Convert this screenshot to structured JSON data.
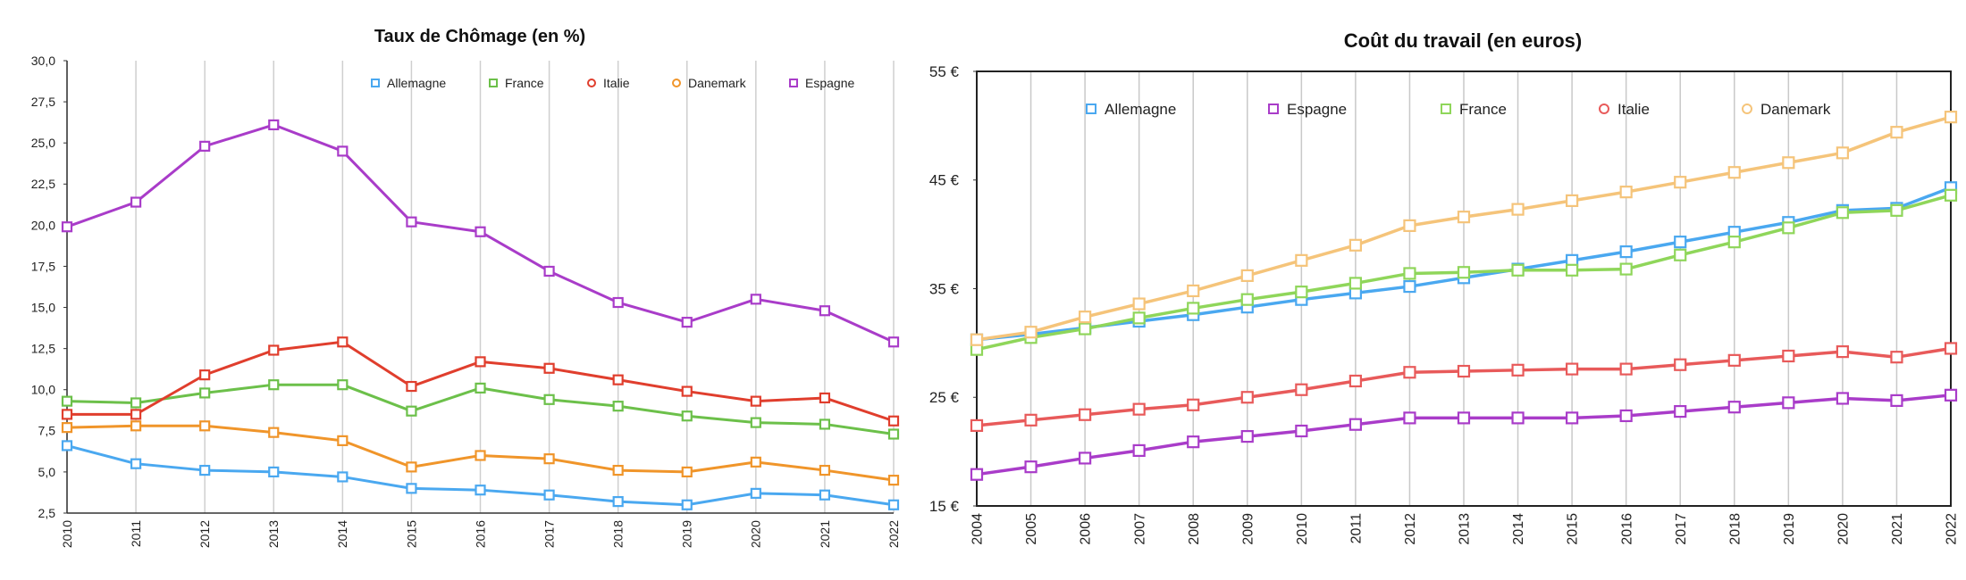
{
  "chart_data": [
    {
      "type": "line",
      "title": "Taux de Chômage (en %)",
      "xlabel": "",
      "ylabel": "",
      "x": [
        "2010",
        "2011",
        "2012",
        "2013",
        "2014",
        "2015",
        "2016",
        "2017",
        "2018",
        "2019",
        "2020",
        "2021",
        "2022"
      ],
      "ylim": [
        2.5,
        30
      ],
      "yticks": [
        "2,5",
        "5,0",
        "7,5",
        "10,0",
        "12,5",
        "15,0",
        "17,5",
        "20,0",
        "22,5",
        "25,0",
        "27,5",
        "30,0"
      ],
      "grid": "vertical",
      "legend_placement": "top",
      "series": [
        {
          "name": "Allemagne",
          "color": "#4aa8f0",
          "values": [
            6.6,
            5.5,
            5.1,
            5.0,
            4.7,
            4.0,
            3.9,
            3.6,
            3.2,
            3.0,
            3.7,
            3.6,
            3.0
          ]
        },
        {
          "name": "France",
          "color": "#6cc04a",
          "values": [
            9.3,
            9.2,
            9.8,
            10.3,
            10.3,
            8.7,
            10.1,
            9.4,
            9.0,
            8.4,
            8.0,
            7.9,
            7.3
          ]
        },
        {
          "name": "Italie",
          "color": "#e03e2d",
          "values": [
            8.5,
            8.5,
            10.9,
            12.4,
            12.9,
            10.2,
            11.7,
            11.3,
            10.6,
            9.9,
            9.3,
            9.5,
            8.1
          ]
        },
        {
          "name": "Danemark",
          "color": "#f0952a",
          "values": [
            7.7,
            7.8,
            7.8,
            7.4,
            6.9,
            5.3,
            6.0,
            5.8,
            5.1,
            5.0,
            5.6,
            5.1,
            4.5
          ]
        },
        {
          "name": "Espagne",
          "color": "#a93cc9",
          "values": [
            19.9,
            21.4,
            24.8,
            26.1,
            24.5,
            20.2,
            19.6,
            17.2,
            15.3,
            14.1,
            15.5,
            14.8,
            12.9
          ]
        }
      ]
    },
    {
      "type": "line",
      "title": "Coût du travail (en euros)",
      "xlabel": "",
      "ylabel": "",
      "x": [
        "2004",
        "2005",
        "2006",
        "2007",
        "2008",
        "2009",
        "2010",
        "2011",
        "2012",
        "2013",
        "2014",
        "2015",
        "2016",
        "2017",
        "2018",
        "2019",
        "2020",
        "2021",
        "2022"
      ],
      "ylim": [
        15,
        55
      ],
      "yticks": [
        "15 €",
        "25 €",
        "35 €",
        "45 €",
        "55 €"
      ],
      "grid": "vertical",
      "legend_placement": "top",
      "series": [
        {
          "name": "Allemagne",
          "color": "#4aa8f0",
          "values": [
            30.3,
            30.8,
            31.4,
            32.0,
            32.6,
            33.3,
            34.0,
            34.6,
            35.2,
            36.0,
            36.8,
            37.6,
            38.4,
            39.3,
            40.2,
            41.1,
            42.2,
            42.4,
            44.3
          ]
        },
        {
          "name": "Espagne",
          "color": "#a93cc9",
          "values": [
            17.9,
            18.6,
            19.4,
            20.1,
            20.9,
            21.4,
            21.9,
            22.5,
            23.1,
            23.1,
            23.1,
            23.1,
            23.3,
            23.7,
            24.1,
            24.5,
            24.9,
            24.7,
            25.2
          ]
        },
        {
          "name": "France",
          "color": "#8fd65a",
          "values": [
            29.4,
            30.5,
            31.3,
            32.3,
            33.2,
            34.0,
            34.7,
            35.5,
            36.4,
            36.5,
            36.7,
            36.7,
            36.8,
            38.1,
            39.3,
            40.6,
            42.0,
            42.2,
            43.6
          ]
        },
        {
          "name": "Italie",
          "color": "#e85a5a",
          "values": [
            22.4,
            22.9,
            23.4,
            23.9,
            24.3,
            25.0,
            25.7,
            26.5,
            27.3,
            27.4,
            27.5,
            27.6,
            27.6,
            28.0,
            28.4,
            28.8,
            29.2,
            28.7,
            29.5
          ]
        },
        {
          "name": "Danemark",
          "color": "#f5c47a",
          "values": [
            30.3,
            31.0,
            32.4,
            33.6,
            34.8,
            36.2,
            37.6,
            39.0,
            40.8,
            41.6,
            42.3,
            43.1,
            43.9,
            44.8,
            45.7,
            46.6,
            47.5,
            49.4,
            50.8
          ]
        }
      ]
    }
  ]
}
